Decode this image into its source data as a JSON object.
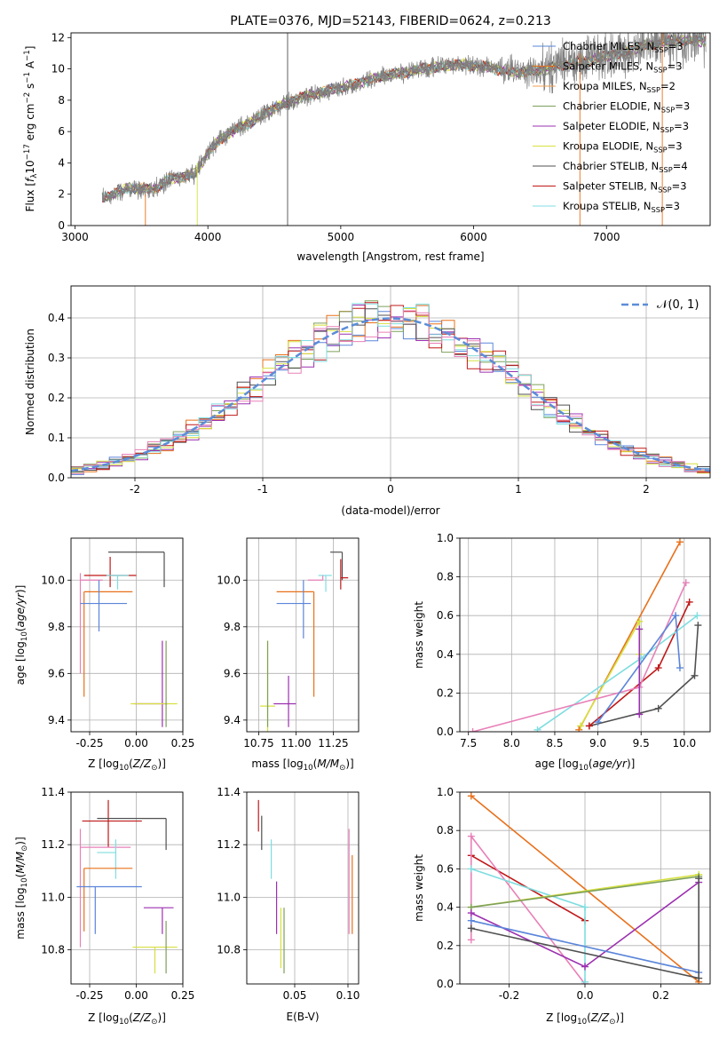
{
  "figure_title": "PLATE=0376, MJD=52143, FIBERID=0624, z=0.213",
  "model_colors": {
    "Chabrier MILES": "#5b85d9",
    "Salpeter MILES": "#e8701a",
    "Kroupa MILES": "#f0a050",
    "Chabrier ELODIE": "#7da05a",
    "Salpeter ELODIE": "#9b30b0",
    "Kroupa ELODIE": "#d6e040",
    "Chabrier STELIB": "#505050",
    "Salpeter STELIB": "#c01818",
    "Kroupa STELIB": "#7fdde0",
    "Pink": "#e880b8",
    "data": "#808080",
    "gauss": "#5b8dd9"
  },
  "chart_data": [
    {
      "id": "spectrum",
      "type": "line",
      "title": "PLATE=0376, MJD=52143, FIBERID=0624, z=0.213",
      "xlabel": "wavelength [Angstrom, rest frame]",
      "ylabel_parts": [
        "Flux [",
        "f",
        "λ",
        "10",
        "−17",
        " erg cm",
        "−2",
        " s",
        "−1",
        " A",
        "−1",
        "]"
      ],
      "xlim": [
        2970,
        7780
      ],
      "ylim": [
        0,
        12.3
      ],
      "xticks": [
        3000,
        4000,
        5000,
        6000,
        7000
      ],
      "yticks": [
        0,
        2,
        4,
        6,
        8,
        10,
        12
      ],
      "grid": false,
      "legend_position": "right",
      "legend": [
        {
          "label": "Chabrier MILES, N",
          "sub": "SSP",
          "tail": "=3",
          "color": "#5b85d9"
        },
        {
          "label": "Salpeter MILES, N",
          "sub": "SSP",
          "tail": "=3",
          "color": "#e8701a"
        },
        {
          "label": "Kroupa MILES, N",
          "sub": "SSP",
          "tail": "=2",
          "color": "#f0a050"
        },
        {
          "label": "Chabrier ELODIE, N",
          "sub": "SSP",
          "tail": "=3",
          "color": "#7da05a"
        },
        {
          "label": "Salpeter ELODIE, N",
          "sub": "SSP",
          "tail": "=3",
          "color": "#9b30b0"
        },
        {
          "label": "Kroupa ELODIE, N",
          "sub": "SSP",
          "tail": "=3",
          "color": "#d6e040"
        },
        {
          "label": "Chabrier STELIB, N",
          "sub": "SSP",
          "tail": "=4",
          "color": "#505050"
        },
        {
          "label": "Salpeter STELIB, N",
          "sub": "SSP",
          "tail": "=3",
          "color": "#c01818"
        },
        {
          "label": "Kroupa STELIB, N",
          "sub": "SSP",
          "tail": "=3",
          "color": "#7fdde0"
        }
      ],
      "data_trend": {
        "x": [
          3200,
          3400,
          3600,
          3700,
          3800,
          3900,
          4000,
          4100,
          4300,
          4500,
          4700,
          4900,
          5100,
          5300,
          5500,
          5700,
          5900,
          6100,
          6300,
          6500,
          6700,
          6900,
          7100,
          7300,
          7500
        ],
        "y": [
          1.7,
          2.4,
          2.3,
          2.9,
          3.1,
          3.3,
          4.6,
          5.6,
          6.5,
          7.5,
          8.2,
          8.6,
          9.0,
          9.5,
          9.8,
          10.1,
          10.3,
          10.1,
          9.8,
          9.9,
          10.3,
          10.6,
          11.0,
          11.5,
          11.8
        ]
      }
    },
    {
      "id": "residuals",
      "type": "histogram",
      "xlabel": "(data-model)/error",
      "ylabel": "Normed distribution",
      "xlim": [
        -2.5,
        2.5
      ],
      "ylim": [
        0,
        0.48
      ],
      "xticks": [
        -2,
        -1,
        0,
        1,
        2
      ],
      "yticks": [
        0.0,
        0.1,
        0.2,
        0.3,
        0.4
      ],
      "grid": true,
      "legend_position": "top-right",
      "gauss_label": "𝒩(0, 1)",
      "bin_width": 0.1
    },
    {
      "id": "age_vs_Z",
      "type": "scatter",
      "xlabel": "Z [log10(Z/Z⊙)]",
      "ylabel": "age  [log10(age/yr)]",
      "xlim": [
        -0.35,
        0.25
      ],
      "ylim": [
        9.35,
        10.18
      ],
      "xticks": [
        -0.25,
        0.0,
        0.25
      ],
      "yticks": [
        9.4,
        9.6,
        9.8,
        10.0
      ],
      "grid": true,
      "points": [
        {
          "model": "Chabrier STELIB",
          "x": 0.15,
          "y": 10.12,
          "xerr": [
            0.3,
            0.0
          ],
          "yerr": [
            0.15,
            0.0
          ]
        },
        {
          "model": "Salpeter STELIB",
          "x": -0.14,
          "y": 10.02,
          "xerr": [
            0.14,
            0.14
          ],
          "yerr": [
            0.05,
            0.08
          ]
        },
        {
          "model": "Kroupa STELIB",
          "x": -0.1,
          "y": 10.02,
          "xerr": [
            0.06,
            0.06
          ],
          "yerr": [
            0.06,
            0.0
          ]
        },
        {
          "model": "Pink",
          "x": -0.3,
          "y": 10.0,
          "xerr": [
            0.0,
            0.12
          ],
          "yerr": [
            0.4,
            0.03
          ]
        },
        {
          "model": "Salpeter MILES",
          "x": -0.28,
          "y": 9.95,
          "xerr": [
            0.0,
            0.26
          ],
          "yerr": [
            0.45,
            0.0
          ]
        },
        {
          "model": "Chabrier MILES",
          "x": -0.2,
          "y": 9.9,
          "xerr": [
            0.1,
            0.15
          ],
          "yerr": [
            0.12,
            0.1
          ]
        },
        {
          "model": "Salpeter ELODIE",
          "x": 0.14,
          "y": 9.47,
          "xerr": [
            0.15,
            0.03
          ],
          "yerr": [
            0.1,
            0.27
          ]
        },
        {
          "model": "Kroupa ELODIE",
          "x": 0.1,
          "y": 9.47,
          "xerr": [
            0.13,
            0.12
          ],
          "yerr": [
            0.0,
            0.0
          ]
        },
        {
          "model": "Chabrier ELODIE",
          "x": 0.16,
          "y": 9.47,
          "xerr": [
            0.0,
            0.0
          ],
          "yerr": [
            0.1,
            0.27
          ]
        }
      ]
    },
    {
      "id": "age_vs_mass",
      "type": "scatter",
      "xlabel": "mass [log10(M/M⊙)]",
      "ylabel": "",
      "xlim": [
        10.67,
        11.42
      ],
      "ylim": [
        9.35,
        10.18
      ],
      "xticks": [
        10.75,
        11.0,
        11.25
      ],
      "yticks": [
        9.4,
        9.6,
        9.8,
        10.0
      ],
      "grid": true,
      "points": [
        {
          "model": "Chabrier STELIB",
          "x": 11.31,
          "y": 10.12,
          "xerr": [
            0.08,
            0.0
          ],
          "yerr": [
            0.12,
            0.0
          ]
        },
        {
          "model": "Salpeter STELIB",
          "x": 11.3,
          "y": 10.01,
          "xerr": [
            0.0,
            0.05
          ],
          "yerr": [
            0.05,
            0.08
          ]
        },
        {
          "model": "Kroupa STELIB",
          "x": 11.2,
          "y": 10.02,
          "xerr": [
            0.05,
            0.04
          ],
          "yerr": [
            0.07,
            0.0
          ]
        },
        {
          "model": "Pink",
          "x": 11.18,
          "y": 10.0,
          "xerr": [
            0.1,
            0.0
          ],
          "yerr": [
            0.0,
            0.02
          ]
        },
        {
          "model": "Salpeter MILES",
          "x": 11.12,
          "y": 9.95,
          "xerr": [
            0.25,
            0.0
          ],
          "yerr": [
            0.45,
            0.0
          ]
        },
        {
          "model": "Chabrier MILES",
          "x": 11.05,
          "y": 9.9,
          "xerr": [
            0.18,
            0.05
          ],
          "yerr": [
            0.15,
            0.1
          ]
        },
        {
          "model": "Salpeter ELODIE",
          "x": 10.95,
          "y": 9.47,
          "xerr": [
            0.1,
            0.05
          ],
          "yerr": [
            0.1,
            0.12
          ]
        },
        {
          "model": "Kroupa ELODIE",
          "x": 10.81,
          "y": 9.46,
          "xerr": [
            0.05,
            0.05
          ],
          "yerr": [
            0.12,
            0.28
          ]
        },
        {
          "model": "Chabrier ELODIE",
          "x": 10.81,
          "y": 9.47,
          "xerr": [
            0.0,
            0.0
          ],
          "yerr": [
            0.1,
            0.27
          ]
        }
      ]
    },
    {
      "id": "mass_weight_vs_age",
      "type": "line",
      "xlabel": "age  [log10(age/yr)]",
      "ylabel": "mass weight",
      "xlim": [
        7.4,
        10.3
      ],
      "ylim": [
        0,
        1.0
      ],
      "xticks": [
        7.5,
        8.0,
        8.5,
        9.0,
        9.5,
        10.0
      ],
      "yticks": [
        0.0,
        0.2,
        0.4,
        0.6,
        0.8,
        1.0
      ],
      "grid": true,
      "series": [
        {
          "model": "Salpeter MILES",
          "x": [
            8.78,
            9.95
          ],
          "y": [
            0.01,
            0.98
          ]
        },
        {
          "model": "Kroupa ELODIE",
          "x": [
            8.8,
            9.48,
            9.48
          ],
          "y": [
            0.03,
            0.57,
            0.4
          ]
        },
        {
          "model": "Chabrier STELIB",
          "x": [
            8.9,
            9.7,
            10.12,
            10.16
          ],
          "y": [
            0.03,
            0.12,
            0.29,
            0.55
          ]
        },
        {
          "model": "Salpeter STELIB",
          "x": [
            8.9,
            9.7,
            10.06
          ],
          "y": [
            0.03,
            0.33,
            0.67
          ]
        },
        {
          "model": "Kroupa STELIB",
          "x": [
            8.3,
            9.5,
            10.15
          ],
          "y": [
            0.01,
            0.38,
            0.6
          ]
        },
        {
          "model": "Pink",
          "x": [
            7.55,
            9.48,
            10.02
          ],
          "y": [
            0.0,
            0.23,
            0.77
          ]
        },
        {
          "model": "Chabrier MILES",
          "x": [
            9.0,
            9.9,
            9.95
          ],
          "y": [
            0.05,
            0.6,
            0.33
          ]
        },
        {
          "model": "Salpeter ELODIE",
          "x": [
            9.48,
            9.48
          ],
          "y": [
            0.09,
            0.53
          ]
        }
      ]
    },
    {
      "id": "mass_vs_Z",
      "type": "scatter",
      "xlabel": "Z [log10(Z/Z⊙)]",
      "ylabel": "mass [log10(M/M⊙)]",
      "xlim": [
        -0.35,
        0.25
      ],
      "ylim": [
        10.67,
        11.4
      ],
      "xticks": [
        -0.25,
        0.0,
        0.25
      ],
      "yticks": [
        10.8,
        11.0,
        11.2,
        11.4
      ],
      "grid": true,
      "points": [
        {
          "model": "Salpeter STELIB",
          "x": -0.15,
          "y": 11.29,
          "xerr": [
            0.14,
            0.18
          ],
          "yerr": [
            0.1,
            0.08
          ]
        },
        {
          "model": "Chabrier STELIB",
          "x": 0.16,
          "y": 11.3,
          "xerr": [
            0.37,
            0.0
          ],
          "yerr": [
            0.12,
            0.0
          ]
        },
        {
          "model": "Pink",
          "x": -0.3,
          "y": 11.19,
          "xerr": [
            0.0,
            0.27
          ],
          "yerr": [
            0.38,
            0.07
          ]
        },
        {
          "model": "Kroupa STELIB",
          "x": -0.11,
          "y": 11.17,
          "xerr": [
            0.1,
            0.0
          ],
          "yerr": [
            0.1,
            0.05
          ]
        },
        {
          "model": "Salpeter MILES",
          "x": -0.28,
          "y": 11.11,
          "xerr": [
            0.0,
            0.26
          ],
          "yerr": [
            0.24,
            0.0
          ]
        },
        {
          "model": "Chabrier MILES",
          "x": -0.22,
          "y": 11.04,
          "xerr": [
            0.1,
            0.25
          ],
          "yerr": [
            0.18,
            0.0
          ]
        },
        {
          "model": "Salpeter ELODIE",
          "x": 0.14,
          "y": 10.96,
          "xerr": [
            0.1,
            0.06
          ],
          "yerr": [
            0.1,
            0.0
          ]
        },
        {
          "model": "Kroupa ELODIE",
          "x": 0.1,
          "y": 10.81,
          "xerr": [
            0.12,
            0.12
          ],
          "yerr": [
            0.1,
            0.0
          ]
        },
        {
          "model": "Chabrier ELODIE",
          "x": 0.16,
          "y": 10.81,
          "xerr": [
            0.0,
            0.0
          ],
          "yerr": [
            0.1,
            0.1
          ]
        }
      ]
    },
    {
      "id": "mass_vs_ebv",
      "type": "scatter",
      "xlabel": "E(B-V)",
      "ylabel": "",
      "xlim": [
        0.005,
        0.11
      ],
      "ylim": [
        10.67,
        11.4
      ],
      "xticks": [
        0.05,
        0.1
      ],
      "yticks": [
        10.8,
        11.0,
        11.2,
        11.4
      ],
      "grid": true,
      "segments": [
        {
          "model": "Salpeter STELIB",
          "x": 0.016,
          "y": [
            11.25,
            11.37
          ]
        },
        {
          "model": "Chabrier STELIB",
          "x": 0.019,
          "y": [
            11.18,
            11.31
          ]
        },
        {
          "model": "Kroupa STELIB",
          "x": 0.028,
          "y": [
            11.07,
            11.22
          ]
        },
        {
          "model": "Salpeter ELODIE",
          "x": 0.033,
          "y": [
            10.86,
            11.06
          ]
        },
        {
          "model": "Kroupa ELODIE",
          "x": 0.037,
          "y": [
            10.73,
            10.96
          ]
        },
        {
          "model": "Chabrier ELODIE",
          "x": 0.04,
          "y": [
            10.71,
            10.96
          ]
        },
        {
          "model": "Pink",
          "x": 0.101,
          "y": [
            10.86,
            11.26
          ]
        },
        {
          "model": "Salpeter MILES",
          "x": 0.104,
          "y": [
            10.86,
            11.16
          ]
        }
      ]
    },
    {
      "id": "mass_weight_vs_Z",
      "type": "line",
      "xlabel": "Z [log10(Z/Z⊙)]",
      "ylabel": "mass weight",
      "xlim": [
        -0.33,
        0.33
      ],
      "ylim": [
        0,
        1.0
      ],
      "xticks": [
        -0.2,
        0.0,
        0.2
      ],
      "yticks": [
        0.0,
        0.2,
        0.4,
        0.6,
        0.8,
        1.0
      ],
      "grid": true,
      "series": [
        {
          "model": "Salpeter MILES",
          "x": [
            -0.3,
            0.3
          ],
          "y": [
            0.98,
            0.01
          ]
        },
        {
          "model": "Salpeter STELIB",
          "x": [
            -0.3,
            0.0
          ],
          "y": [
            0.67,
            0.33
          ]
        },
        {
          "model": "Pink",
          "x": [
            -0.3,
            -0.3,
            0.0
          ],
          "y": [
            0.23,
            0.77,
            0.0
          ]
        },
        {
          "model": "Kroupa STELIB",
          "x": [
            -0.3,
            0.0,
            0.0
          ],
          "y": [
            0.6,
            0.4,
            0.01
          ]
        },
        {
          "model": "Kroupa ELODIE",
          "x": [
            -0.3,
            0.3
          ],
          "y": [
            0.4,
            0.57
          ]
        },
        {
          "model": "Chabrier ELODIE",
          "x": [
            -0.3,
            0.3
          ],
          "y": [
            0.4,
            0.56
          ]
        },
        {
          "model": "Salpeter ELODIE",
          "x": [
            -0.3,
            0.0,
            0.3
          ],
          "y": [
            0.37,
            0.09,
            0.53
          ]
        },
        {
          "model": "Chabrier MILES",
          "x": [
            -0.3,
            0.3
          ],
          "y": [
            0.33,
            0.06
          ]
        },
        {
          "model": "Chabrier STELIB",
          "x": [
            -0.3,
            0.3,
            0.3
          ],
          "y": [
            0.29,
            0.03,
            0.55
          ]
        }
      ]
    }
  ]
}
